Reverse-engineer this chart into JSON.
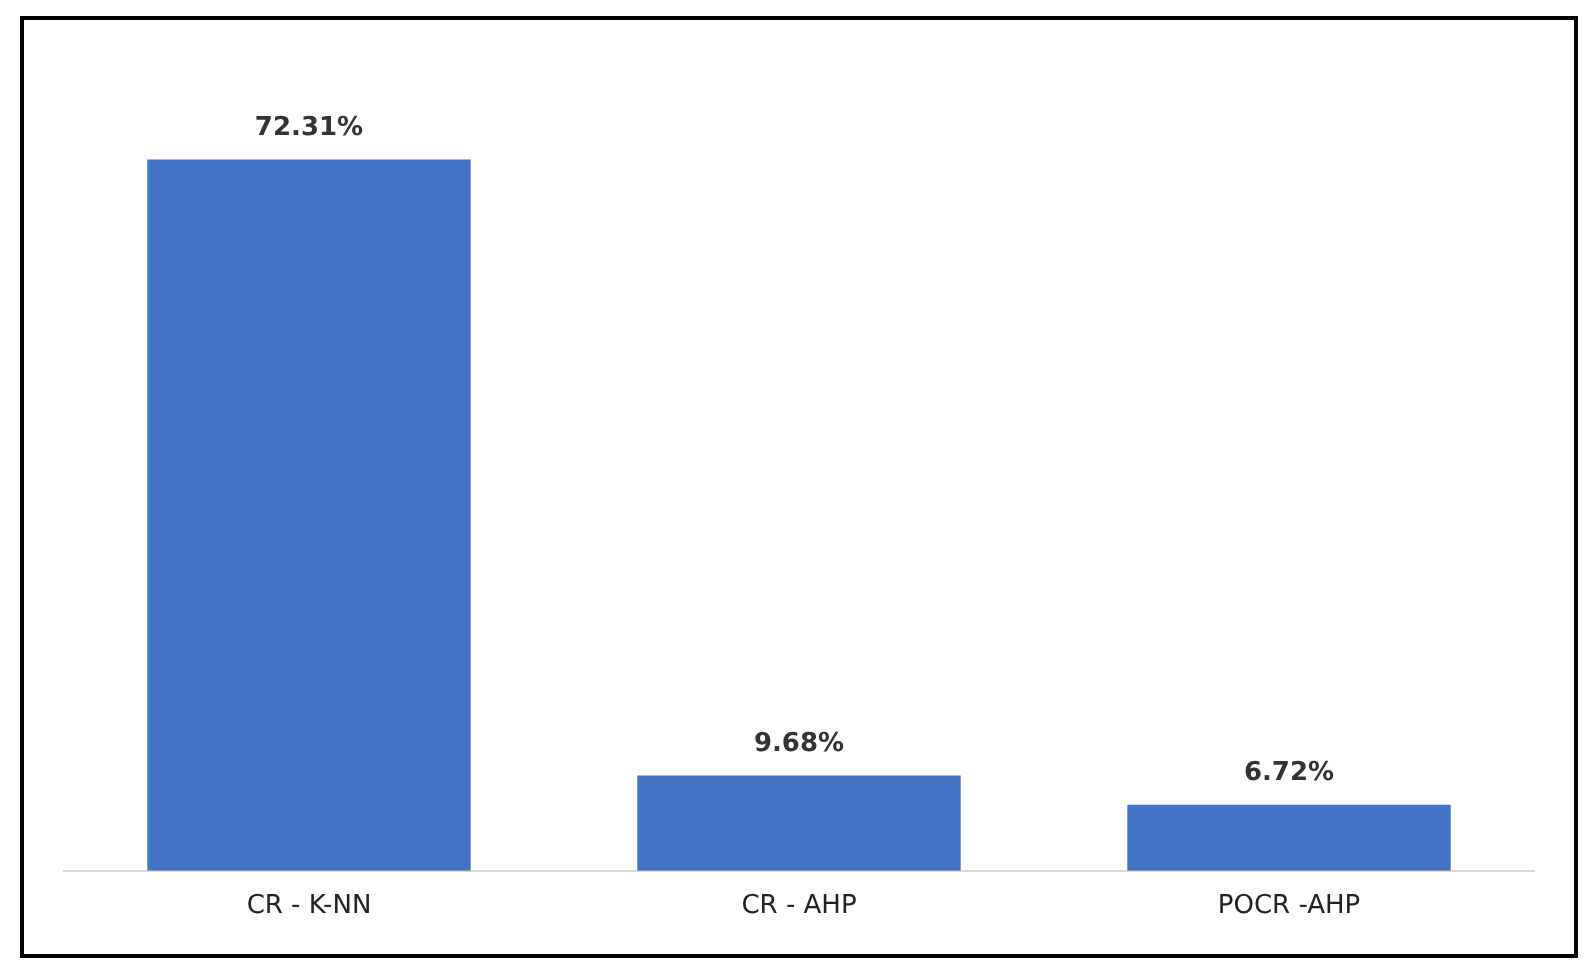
{
  "chart_data": {
    "type": "bar",
    "categories": [
      "CR - K-NN",
      "CR - AHP",
      "POCR -AHP"
    ],
    "values": [
      72.31,
      9.68,
      6.72
    ],
    "color": "#4472c4",
    "value_labels": [
      "72.31%",
      "9.68%",
      "6.72%"
    ],
    "tick_labels": "x",
    "grid": false,
    "legend": false
  }
}
